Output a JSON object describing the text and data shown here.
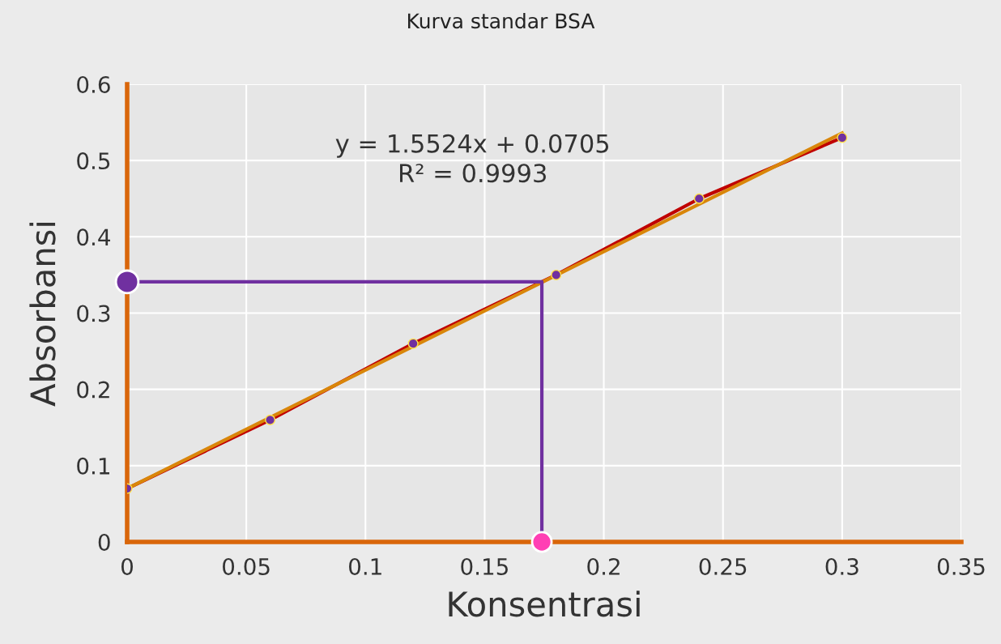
{
  "chart_data": {
    "type": "scatter",
    "title": "Kurva standar BSA",
    "xlabel": "Konsentrasi",
    "ylabel": "Absorbansi",
    "xlim": [
      0,
      0.35
    ],
    "xticks": [
      0,
      0.05,
      0.1,
      0.15,
      0.2,
      0.25,
      0.3,
      0.35
    ],
    "ylim": [
      0,
      0.6
    ],
    "yticks": [
      0,
      0.1,
      0.2,
      0.3,
      0.4,
      0.5,
      0.6
    ],
    "grid": true,
    "series": [
      {
        "type": "line",
        "color": "#c00000",
        "marker": "circle",
        "x": [
          0,
          0.06,
          0.12,
          0.18,
          0.24,
          0.3
        ],
        "values": [
          0.07,
          0.16,
          0.26,
          0.35,
          0.45,
          0.53
        ]
      },
      {
        "type": "line",
        "color": "#d9860a",
        "marker": "none",
        "x": [
          0,
          0.3
        ],
        "values": [
          0.07,
          0.536
        ]
      },
      {
        "type": "line",
        "color": "#7030a0",
        "marker": "none",
        "x": [
          0,
          0.174,
          0.174
        ],
        "values": [
          0.341,
          0.341,
          0
        ]
      },
      {
        "colors": [
          "#7030a0",
          "#ff3fb4"
        ],
        "x": [
          0,
          0.174
        ],
        "values": [
          0.341,
          0
        ]
      }
    ],
    "annotations": [
      "y = 1.5524x + 0.0705\nR² = 0.9993"
    ]
  }
}
